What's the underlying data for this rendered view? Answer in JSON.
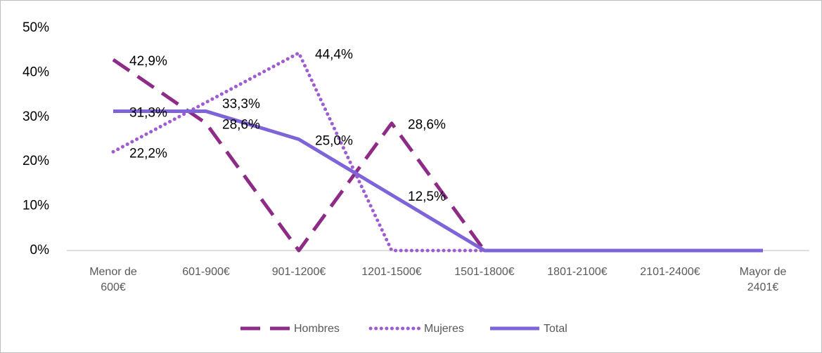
{
  "chart_data": {
    "type": "line",
    "categories": [
      "Menor de 600€",
      "601-900€",
      "901-1200€",
      "1201-1500€",
      "1501-1800€",
      "1801-2100€",
      "2101-2400€",
      "Mayor de 2401€"
    ],
    "series": [
      {
        "name": "Hombres",
        "color": "#8e2b87",
        "style": "dashed",
        "values": [
          42.9,
          28.6,
          0,
          28.6,
          0,
          0,
          0,
          0
        ],
        "value_labels": [
          "42,9%",
          "28,6%",
          null,
          "28,6%",
          null,
          null,
          null,
          null
        ]
      },
      {
        "name": "Mujeres",
        "color": "#a05ccf",
        "style": "dotted",
        "values": [
          22.2,
          33.3,
          44.4,
          0,
          0,
          0,
          0,
          0
        ],
        "value_labels": [
          "22,2%",
          "33,3%",
          "44,4%",
          null,
          null,
          null,
          null,
          null
        ]
      },
      {
        "name": "Total",
        "color": "#7e64d8",
        "style": "solid",
        "values": [
          31.3,
          31.3,
          25.0,
          12.5,
          0,
          0,
          0,
          0
        ],
        "value_labels": [
          "31,3%",
          null,
          "25,0%",
          "12,5%",
          null,
          null,
          null,
          null
        ]
      }
    ],
    "ylim": [
      0,
      50
    ],
    "yticks": [
      {
        "value": 0,
        "label": "0%"
      },
      {
        "value": 10,
        "label": "10%"
      },
      {
        "value": 20,
        "label": "20%"
      },
      {
        "value": 30,
        "label": "30%"
      },
      {
        "value": 40,
        "label": "40%"
      },
      {
        "value": 50,
        "label": "50%"
      }
    ],
    "grid": false,
    "legend": "bottom"
  }
}
